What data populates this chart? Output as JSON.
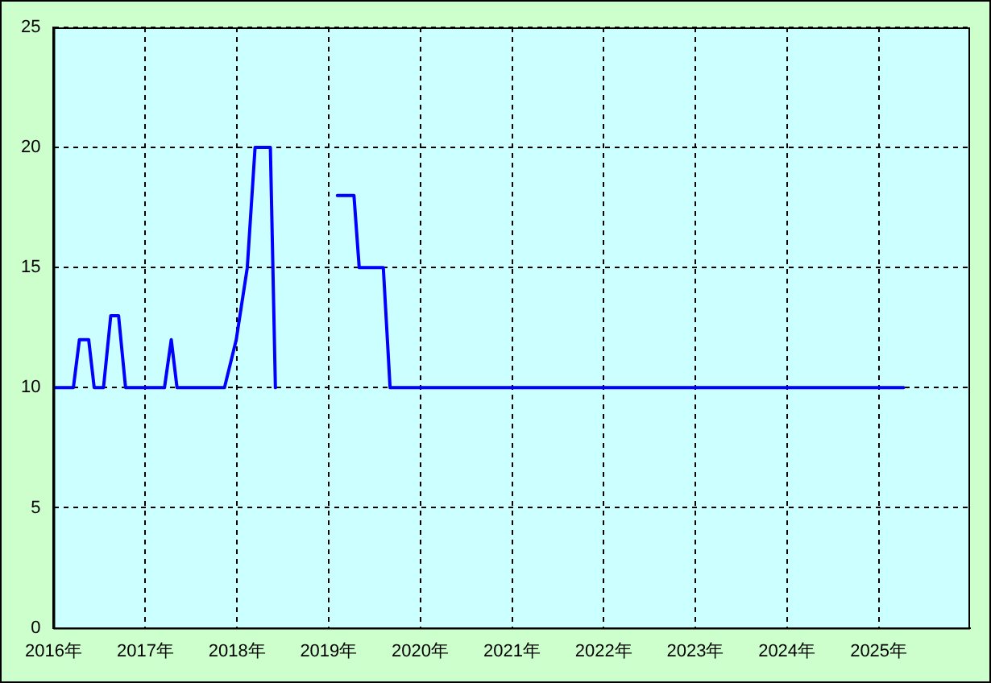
{
  "chart_data": {
    "type": "line",
    "xlim": [
      "2016-01-01",
      "2025-12-31"
    ],
    "ylim": [
      0,
      25
    ],
    "yticks": [
      0,
      5,
      10,
      15,
      20,
      25
    ],
    "xticks": [
      {
        "value": "2016-01-01",
        "label": "2016年"
      },
      {
        "value": "2017-01-01",
        "label": "2017年"
      },
      {
        "value": "2018-01-01",
        "label": "2018年"
      },
      {
        "value": "2019-01-01",
        "label": "2019年"
      },
      {
        "value": "2020-01-01",
        "label": "2020年"
      },
      {
        "value": "2021-01-01",
        "label": "2021年"
      },
      {
        "value": "2022-01-01",
        "label": "2022年"
      },
      {
        "value": "2023-01-01",
        "label": "2023年"
      },
      {
        "value": "2024-01-01",
        "label": "2024年"
      },
      {
        "value": "2025-01-01",
        "label": "2025年"
      }
    ],
    "grid": true,
    "legend": false,
    "marker": "none",
    "line_style": "solid",
    "series": [
      {
        "color": "#0000ff",
        "x": [
          "2016-01-01",
          "2016-03-20",
          "2016-04-13",
          "2016-05-20",
          "2016-06-11",
          "2016-07-18",
          "2016-08-16",
          "2016-09-16",
          "2016-10-14",
          "2017-03-18",
          "2017-04-14",
          "2017-05-07",
          "2017-11-12",
          "2017-12-29",
          "2018-02-11",
          "2018-03-14",
          "2018-05-14",
          "2018-06-03"
        ],
        "values": [
          10,
          10,
          12,
          12,
          10,
          10,
          13,
          13,
          10,
          10,
          12,
          10,
          10,
          12,
          15,
          20,
          20,
          10
        ]
      },
      {
        "color": "#0000ff",
        "x": [
          "2019-02-05",
          "2019-04-12",
          "2019-05-03",
          "2019-08-07",
          "2019-09-03",
          "2025-04-10"
        ],
        "values": [
          18,
          18,
          15,
          15,
          10,
          10
        ]
      }
    ]
  }
}
